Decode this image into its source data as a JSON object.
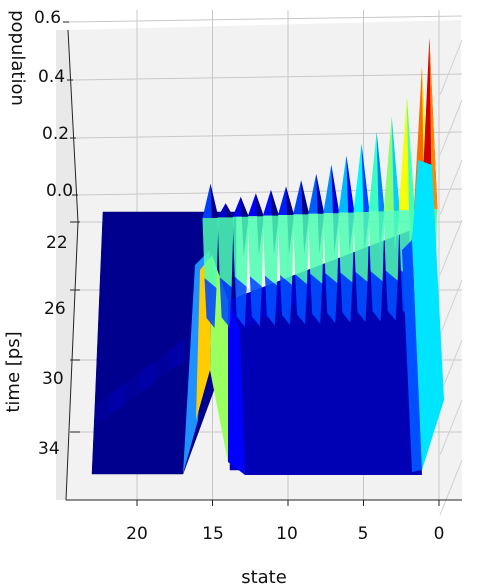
{
  "chart_data": {
    "type": "surface3d",
    "title": "",
    "colormap": "jet",
    "xlabel": "state",
    "ylabel": "time [ps]",
    "zlabel": "population",
    "x_ticks": [
      "20",
      "15",
      "10",
      "5",
      "0"
    ],
    "x_tick_values": [
      20,
      15,
      10,
      5,
      0
    ],
    "y_ticks": [
      "22",
      "26",
      "30",
      "34"
    ],
    "y_tick_values": [
      22,
      26,
      30,
      34
    ],
    "z_ticks": [
      "0.0",
      "0.2",
      "0.4",
      "0.6"
    ],
    "z_tick_values": [
      0.0,
      0.2,
      0.4,
      0.6
    ],
    "xlim": [
      24,
      -1.5
    ],
    "ylim": [
      20,
      36
    ],
    "zlim": [
      0.0,
      0.65
    ],
    "grid": true,
    "states": [
      23,
      22,
      21,
      20,
      19,
      18,
      17,
      16,
      15,
      14,
      13,
      12,
      11,
      10,
      9,
      8,
      7,
      6,
      5,
      4,
      3,
      2,
      1,
      0
    ],
    "population_peaks": [
      {
        "state": 15,
        "value": 0.12
      },
      {
        "state": 14,
        "value": 0.05
      },
      {
        "state": 13,
        "value": 0.07
      },
      {
        "state": 12,
        "value": 0.08
      },
      {
        "state": 11,
        "value": 0.09
      },
      {
        "state": 10,
        "value": 0.1
      },
      {
        "state": 9,
        "value": 0.12
      },
      {
        "state": 8,
        "value": 0.14
      },
      {
        "state": 7,
        "value": 0.17
      },
      {
        "state": 6,
        "value": 0.2
      },
      {
        "state": 5,
        "value": 0.24
      },
      {
        "state": 4,
        "value": 0.28
      },
      {
        "state": 3,
        "value": 0.33
      },
      {
        "state": 2,
        "value": 0.4
      },
      {
        "state": 1,
        "value": 0.5
      },
      {
        "state": 0.5,
        "value": 0.6
      }
    ]
  }
}
